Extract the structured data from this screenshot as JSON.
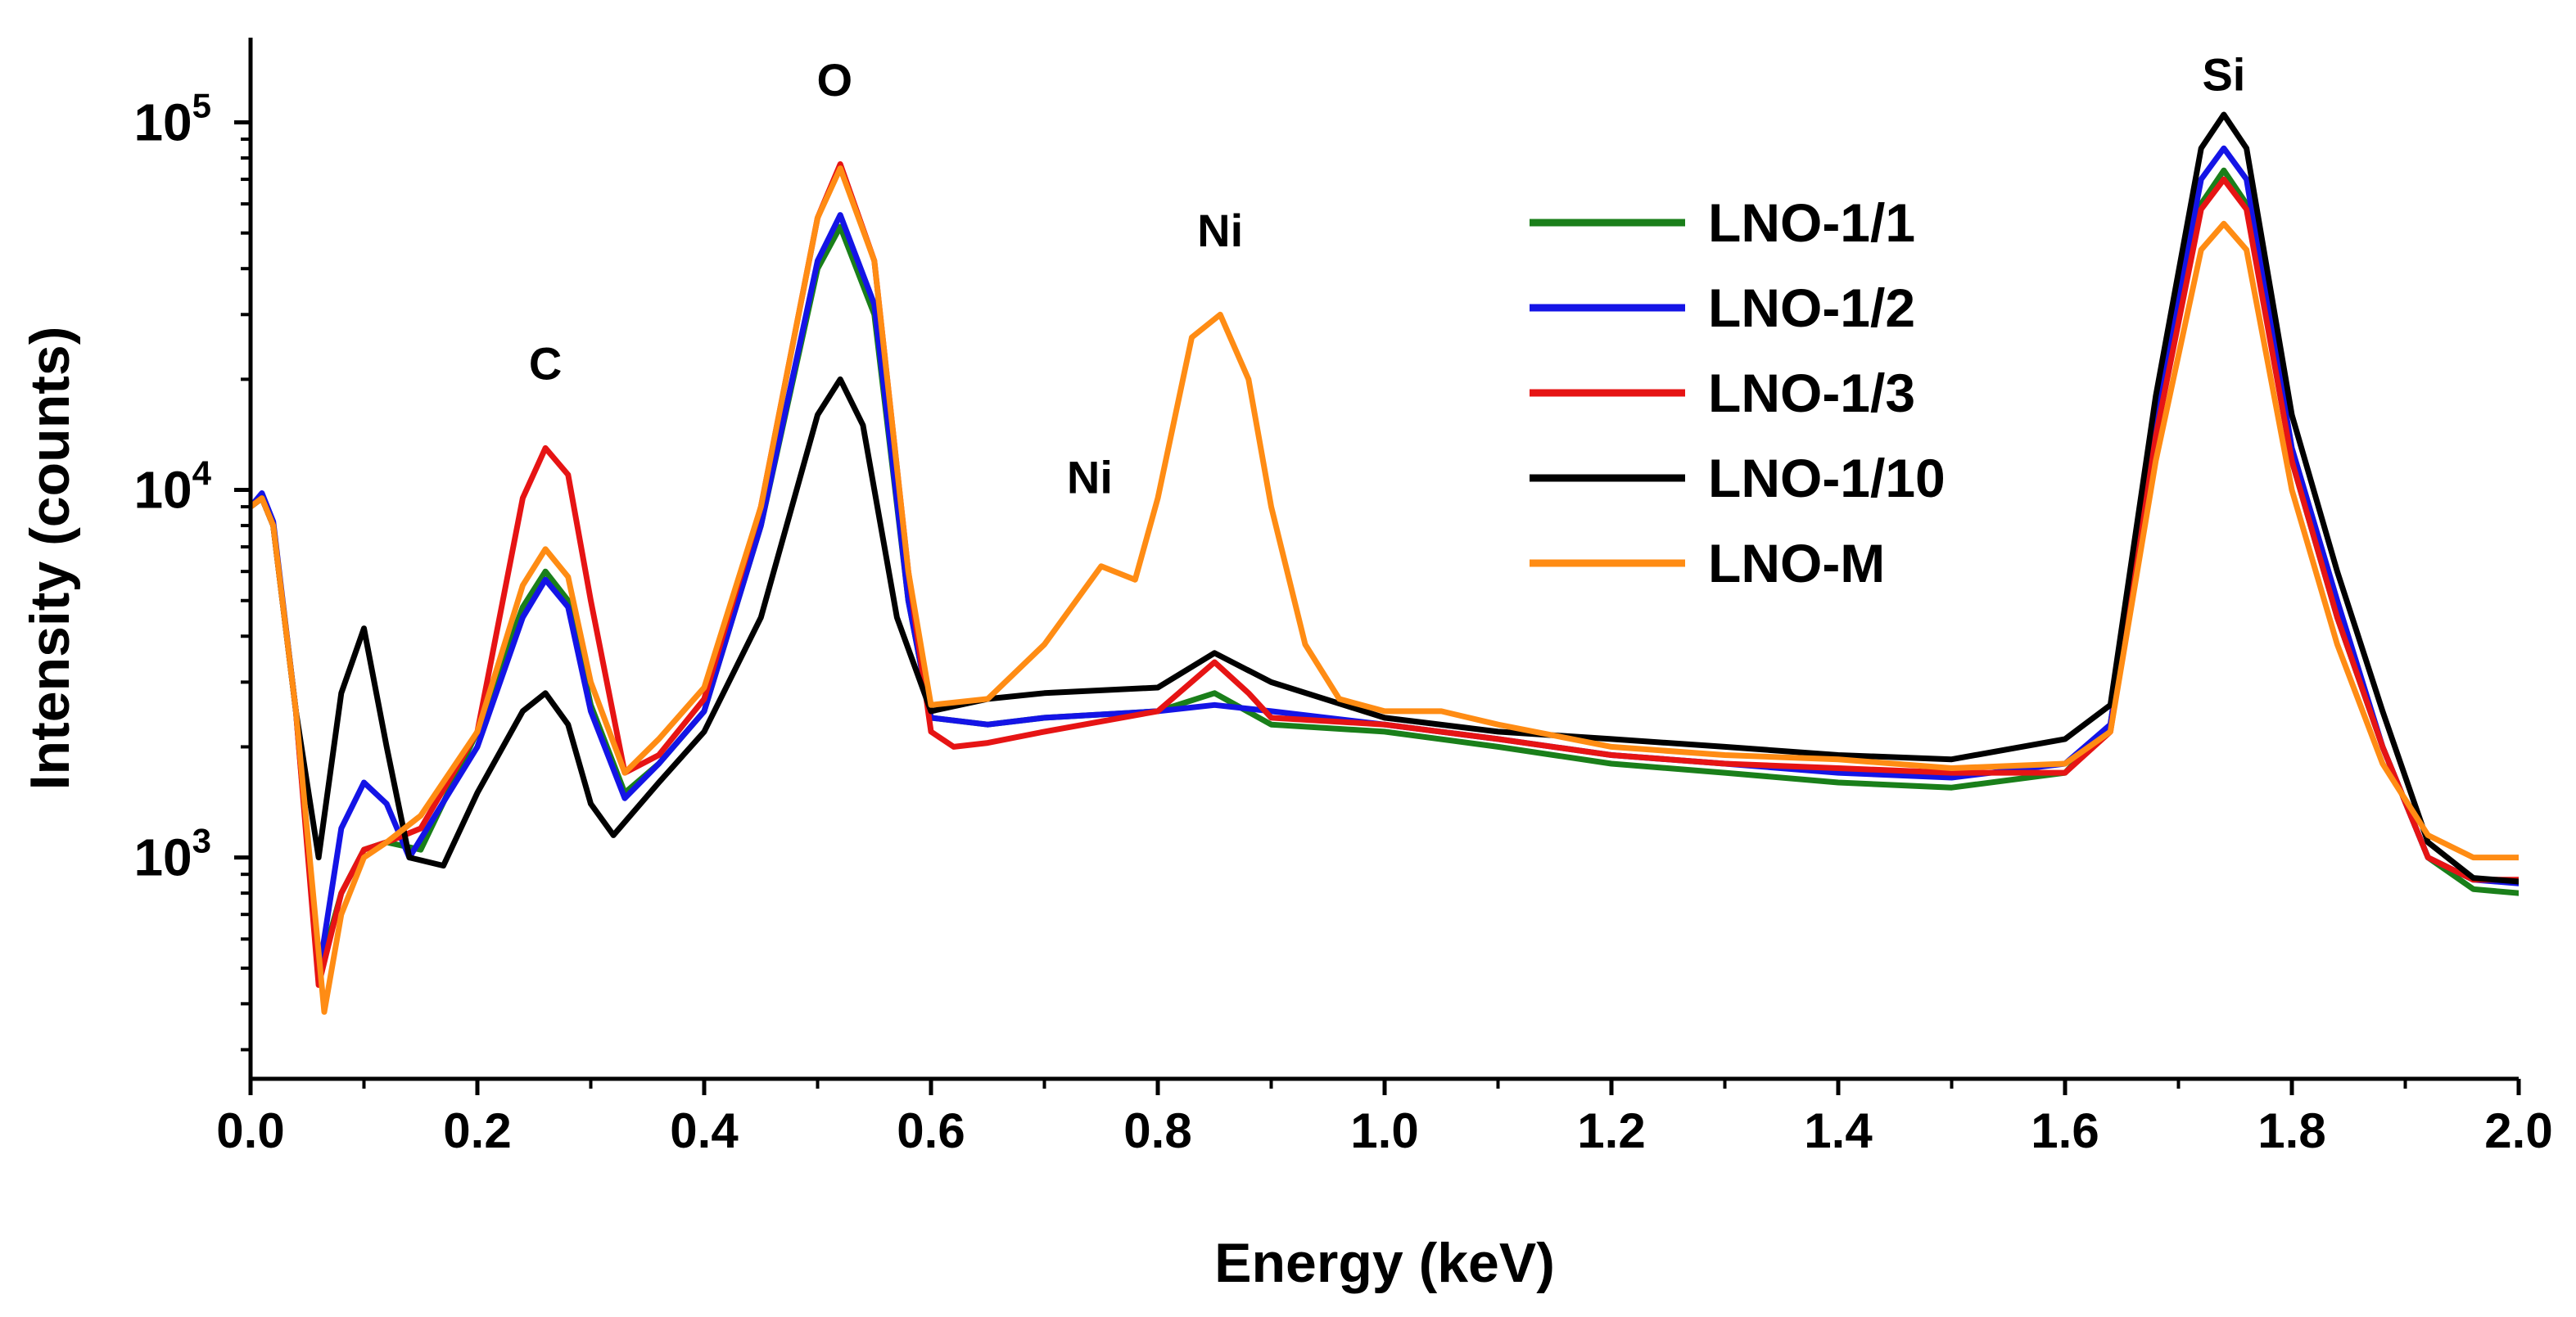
{
  "chart_data": {
    "type": "line",
    "title": "",
    "xlabel": "Energy (keV)",
    "ylabel": "Intensity (counts)",
    "xlim": [
      0.0,
      2.0
    ],
    "ylim": [
      250,
      170000
    ],
    "yscale": "log",
    "xticks": [
      0.0,
      0.2,
      0.4,
      0.6,
      0.8,
      1.0,
      1.2,
      1.4,
      1.6,
      1.8,
      2.0
    ],
    "xtick_labels": [
      "0.0",
      "0.2",
      "0.4",
      "0.6",
      "0.8",
      "1.0",
      "1.2",
      "1.4",
      "1.6",
      "1.8",
      "2.0"
    ],
    "yticks": [
      1000,
      10000,
      100000
    ],
    "ytick_labels": [
      {
        "base": "10",
        "exp": "3"
      },
      {
        "base": "10",
        "exp": "4"
      },
      {
        "base": "10",
        "exp": "5"
      }
    ],
    "grid": false,
    "legend": "top-center-right",
    "annotations": [
      {
        "text": "C",
        "x": 0.26,
        "y": 20000
      },
      {
        "text": "O",
        "x": 0.515,
        "y": 118000
      },
      {
        "text": "Ni",
        "x": 0.74,
        "y": 9800
      },
      {
        "text": "Ni",
        "x": 0.855,
        "y": 46000
      },
      {
        "text": "Si",
        "x": 1.74,
        "y": 122000
      }
    ],
    "series": [
      {
        "name": "LNO-1/1",
        "color": "#1a7f1a",
        "x": [
          0.0,
          0.01,
          0.02,
          0.04,
          0.06,
          0.08,
          0.1,
          0.12,
          0.15,
          0.2,
          0.24,
          0.26,
          0.28,
          0.3,
          0.33,
          0.36,
          0.4,
          0.45,
          0.5,
          0.52,
          0.55,
          0.58,
          0.6,
          0.65,
          0.7,
          0.8,
          0.85,
          0.9,
          1.0,
          1.1,
          1.2,
          1.3,
          1.4,
          1.5,
          1.6,
          1.64,
          1.68,
          1.72,
          1.74,
          1.76,
          1.8,
          1.84,
          1.88,
          1.92,
          1.96,
          2.0
        ],
        "y": [
          9000,
          9500,
          8000,
          2500,
          480,
          800,
          1050,
          1100,
          1050,
          2200,
          4800,
          6000,
          5000,
          2600,
          1500,
          1800,
          2500,
          8000,
          40000,
          52000,
          30000,
          5000,
          2400,
          2300,
          2400,
          2500,
          2800,
          2300,
          2200,
          2000,
          1800,
          1700,
          1600,
          1550,
          1700,
          2300,
          15000,
          60000,
          74000,
          60000,
          12000,
          4500,
          2000,
          1000,
          820,
          800
        ]
      },
      {
        "name": "LNO-1/2",
        "color": "#1414e6",
        "x": [
          0.0,
          0.01,
          0.02,
          0.04,
          0.06,
          0.08,
          0.1,
          0.12,
          0.14,
          0.2,
          0.24,
          0.26,
          0.28,
          0.3,
          0.33,
          0.36,
          0.4,
          0.45,
          0.5,
          0.52,
          0.55,
          0.58,
          0.6,
          0.65,
          0.7,
          0.8,
          0.85,
          0.9,
          1.0,
          1.1,
          1.2,
          1.3,
          1.4,
          1.5,
          1.6,
          1.64,
          1.68,
          1.72,
          1.74,
          1.76,
          1.8,
          1.84,
          1.88,
          1.92,
          1.96,
          2.0
        ],
        "y": [
          9000,
          9800,
          8200,
          2500,
          480,
          1200,
          1600,
          1400,
          1000,
          2000,
          4500,
          5700,
          4800,
          2500,
          1450,
          1800,
          2500,
          8000,
          42000,
          56000,
          32000,
          5000,
          2400,
          2300,
          2400,
          2500,
          2600,
          2500,
          2300,
          2100,
          1900,
          1800,
          1700,
          1650,
          1800,
          2300,
          16000,
          70000,
          85000,
          70000,
          13000,
          5000,
          2000,
          1000,
          870,
          850
        ]
      },
      {
        "name": "LNO-1/3",
        "color": "#e61414",
        "x": [
          0.0,
          0.01,
          0.02,
          0.04,
          0.06,
          0.08,
          0.1,
          0.12,
          0.15,
          0.2,
          0.24,
          0.26,
          0.28,
          0.3,
          0.33,
          0.36,
          0.4,
          0.45,
          0.5,
          0.52,
          0.55,
          0.58,
          0.6,
          0.62,
          0.65,
          0.7,
          0.8,
          0.85,
          0.88,
          0.9,
          1.0,
          1.1,
          1.2,
          1.3,
          1.4,
          1.5,
          1.6,
          1.64,
          1.68,
          1.72,
          1.74,
          1.76,
          1.8,
          1.84,
          1.88,
          1.92,
          1.96,
          2.0
        ],
        "y": [
          9000,
          9500,
          8000,
          2500,
          450,
          800,
          1050,
          1100,
          1200,
          2200,
          9500,
          13000,
          11000,
          5000,
          1700,
          1900,
          2700,
          9000,
          55000,
          77000,
          42000,
          6000,
          2200,
          2000,
          2050,
          2200,
          2500,
          3400,
          2800,
          2400,
          2300,
          2100,
          1900,
          1800,
          1750,
          1700,
          1700,
          2200,
          14000,
          58000,
          70000,
          58000,
          12000,
          4500,
          2000,
          1000,
          870,
          870
        ]
      },
      {
        "name": "LNO-1/10",
        "color": "#000000",
        "x": [
          0.0,
          0.01,
          0.02,
          0.04,
          0.06,
          0.08,
          0.1,
          0.12,
          0.14,
          0.17,
          0.2,
          0.24,
          0.26,
          0.28,
          0.3,
          0.32,
          0.36,
          0.4,
          0.45,
          0.5,
          0.52,
          0.54,
          0.57,
          0.6,
          0.65,
          0.7,
          0.8,
          0.85,
          0.9,
          1.0,
          1.1,
          1.2,
          1.3,
          1.4,
          1.5,
          1.6,
          1.64,
          1.68,
          1.72,
          1.74,
          1.76,
          1.8,
          1.84,
          1.88,
          1.92,
          1.96,
          2.0
        ],
        "y": [
          9000,
          9500,
          8000,
          2500,
          1000,
          2800,
          4200,
          2000,
          1000,
          950,
          1500,
          2500,
          2800,
          2300,
          1400,
          1150,
          1600,
          2200,
          4500,
          16000,
          20000,
          15000,
          4500,
          2500,
          2700,
          2800,
          2900,
          3600,
          3000,
          2400,
          2200,
          2100,
          2000,
          1900,
          1850,
          2100,
          2600,
          18000,
          85000,
          105000,
          85000,
          16000,
          6000,
          2500,
          1100,
          880,
          860
        ]
      },
      {
        "name": "LNO-M",
        "color": "#ff8c14",
        "x": [
          0.0,
          0.01,
          0.02,
          0.04,
          0.065,
          0.08,
          0.1,
          0.12,
          0.15,
          0.2,
          0.24,
          0.26,
          0.28,
          0.3,
          0.33,
          0.36,
          0.4,
          0.45,
          0.5,
          0.52,
          0.55,
          0.58,
          0.6,
          0.65,
          0.7,
          0.75,
          0.78,
          0.8,
          0.83,
          0.855,
          0.88,
          0.9,
          0.93,
          0.96,
          1.0,
          1.05,
          1.1,
          1.2,
          1.3,
          1.4,
          1.5,
          1.6,
          1.64,
          1.68,
          1.72,
          1.74,
          1.76,
          1.8,
          1.84,
          1.88,
          1.92,
          1.96,
          2.0
        ],
        "y": [
          9000,
          9500,
          8000,
          2500,
          380,
          700,
          1000,
          1100,
          1300,
          2200,
          5500,
          6900,
          5800,
          3000,
          1700,
          2100,
          2900,
          9000,
          55000,
          75000,
          42000,
          6000,
          2600,
          2700,
          3800,
          6200,
          5700,
          9500,
          26000,
          30000,
          20000,
          9000,
          3800,
          2700,
          2500,
          2500,
          2300,
          2000,
          1900,
          1850,
          1750,
          1800,
          2200,
          12000,
          45000,
          53000,
          45000,
          10000,
          3800,
          1800,
          1150,
          1000,
          1000
        ]
      }
    ]
  }
}
